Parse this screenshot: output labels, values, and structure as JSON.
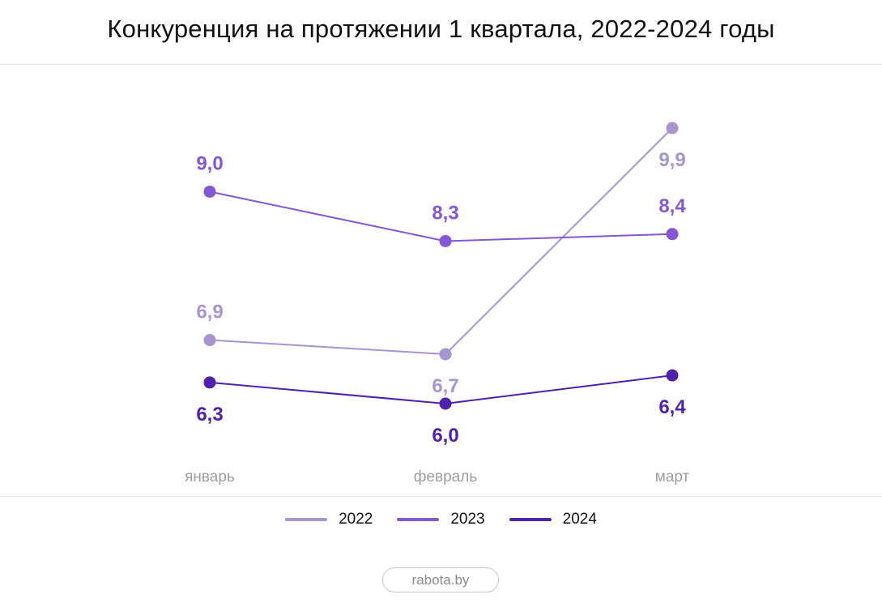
{
  "chart_data": {
    "type": "line",
    "title": "Конкуренция на протяжении 1 квартала, 2022-2024 годы",
    "categories": [
      "январь",
      "февраль",
      "март"
    ],
    "series": [
      {
        "name": "2022",
        "values": [
          6.9,
          6.7,
          9.9
        ],
        "labels": [
          "6,9",
          "6,7",
          "9,9"
        ],
        "color": "#a994d2"
      },
      {
        "name": "2023",
        "values": [
          9.0,
          8.3,
          8.4
        ],
        "labels": [
          "9,0",
          "8,3",
          "8,4"
        ],
        "color": "#8457d6"
      },
      {
        "name": "2024",
        "values": [
          6.3,
          6.0,
          6.4
        ],
        "labels": [
          "6,3",
          "6,0",
          "6,4"
        ],
        "color": "#5020ae"
      }
    ],
    "grid": false,
    "legend_position": "bottom"
  },
  "source": "rabota.by"
}
